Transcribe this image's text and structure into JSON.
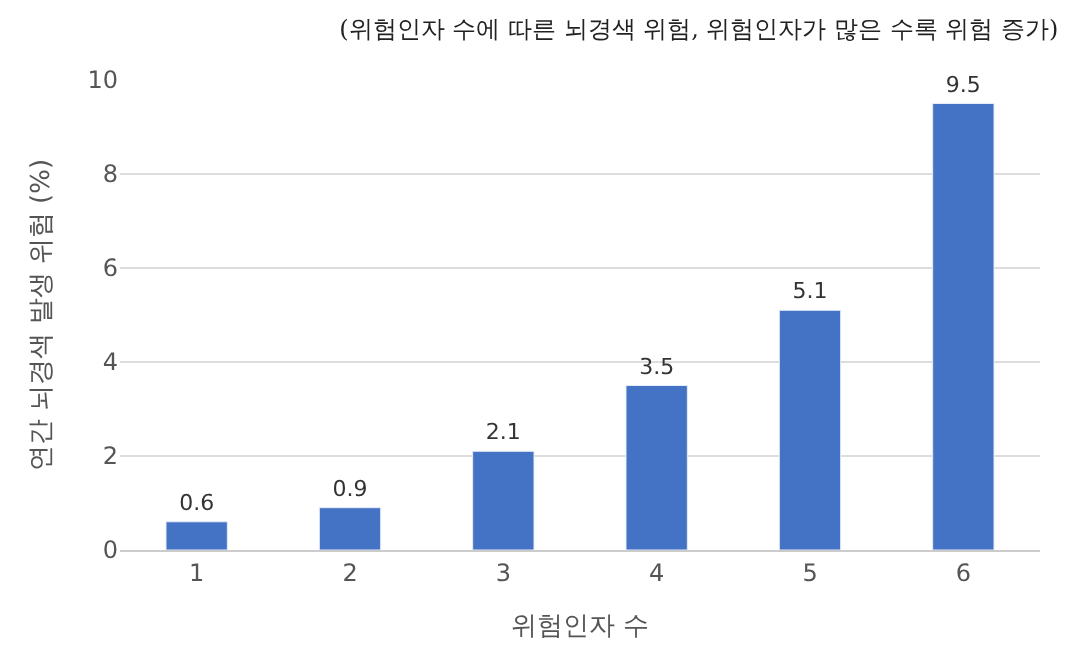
{
  "chart_data": {
    "type": "bar",
    "title": "(위험인자 수에 따른 뇌경색 위험, 위험인자가 많은 수록 위험 증가)",
    "xlabel": "위험인자 수",
    "ylabel": "연간 뇌경색 발생 위험 (%)",
    "categories": [
      "1",
      "2",
      "3",
      "4",
      "5",
      "6"
    ],
    "values": [
      0.6,
      0.9,
      2.1,
      3.5,
      5.1,
      9.5
    ],
    "color": "#4472c4",
    "ylim": [
      0,
      10
    ],
    "yticks": [
      0,
      2,
      4,
      6,
      8,
      10
    ],
    "grid": "y",
    "data_labels": true
  }
}
